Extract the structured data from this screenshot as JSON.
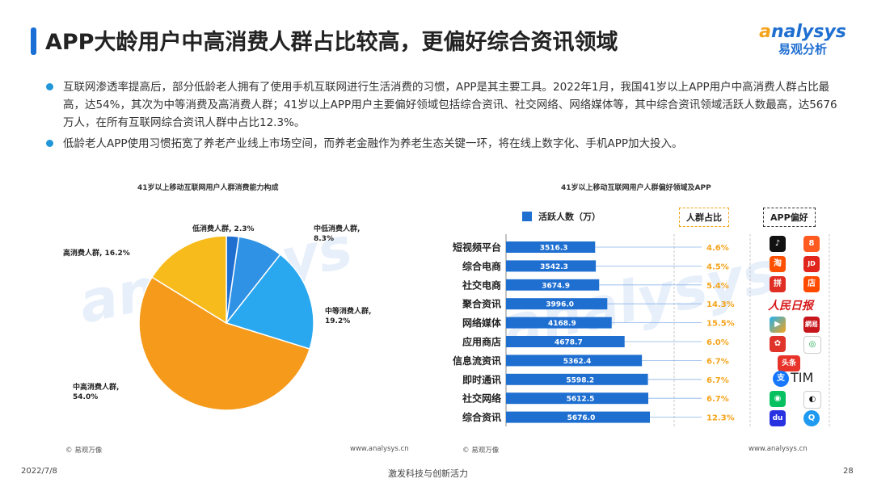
{
  "header": {
    "title": "APP大龄用户中高消费人群占比较高，更偏好综合资讯领域",
    "logo_word_a": "a",
    "logo_word_rest": "nalysys",
    "logo_cn": "易观分析"
  },
  "bullets": [
    "互联网渗透率提高后，部分低龄老人拥有了使用手机互联网进行生活消费的习惯，APP是其主要工具。2022年1月，我国41岁以上APP用户中高消费人群占比最高，达54%，其次为中等消费及高消费人群；41岁以上APP用户主要偏好领域包括综合资讯、社交网络、网络媒体等，其中综合资讯领域活跃人数最高，达5676万人，在所有互联网综合资讯人群中占比12.3%。",
    "低龄老人APP使用习惯拓宽了养老产业线上市场空间，而养老金融作为养老生态关键一环，将在线上数字化、手机APP加大投入。"
  ],
  "chart_data": [
    {
      "type": "pie",
      "title": "41岁以上移动互联网用户人群消费能力构成",
      "slices": [
        {
          "label": "低消费人群",
          "value": 2.3,
          "display": "低消费人群, 2.3%",
          "color": "#1f6fd1"
        },
        {
          "label": "中低消费人群",
          "value": 8.3,
          "display": "中低消费人群,\n8.3%",
          "color": "#2f92e4"
        },
        {
          "label": "中等消费人群",
          "value": 19.2,
          "display": "中等消费人群,\n19.2%",
          "color": "#29a8f0"
        },
        {
          "label": "中高消费人群",
          "value": 54.0,
          "display": "中高消费人群,\n54.0%",
          "color": "#f59a1b"
        },
        {
          "label": "高消费人群",
          "value": 16.2,
          "display": "高消费人群, 16.2%",
          "color": "#f8bb1c"
        }
      ]
    },
    {
      "type": "bar",
      "title": "41岁以上移动互联网用户人群偏好领域及APP",
      "legend": [
        "活跃人数（万）",
        "人群占比",
        "APP偏好"
      ],
      "categories": [
        "短视频平台",
        "综合电商",
        "社交电商",
        "聚合资讯",
        "网络媒体",
        "应用商店",
        "信息流资讯",
        "即时通讯",
        "社交网络",
        "综合资讯"
      ],
      "values": [
        3516.3,
        3542.3,
        3674.9,
        3996.0,
        4168.9,
        4678.7,
        5362.4,
        5598.2,
        5612.5,
        5676.0
      ],
      "value_labels": [
        "3516.3",
        "3542.3",
        "3674.9",
        "3996.0",
        "4168.9",
        "4678.7",
        "5362.4",
        "5598.2",
        "5612.5",
        "5676.0"
      ],
      "share": [
        "4.6%",
        "4.5%",
        "5.4%",
        "14.3%",
        "15.5%",
        "6.0%",
        "6.7%",
        "6.7%",
        "6.7%",
        "12.3%"
      ],
      "apps": [
        [
          "抖音",
          "快手"
        ],
        [
          "淘宝",
          "京东"
        ],
        [
          "拼多多",
          "点淘"
        ],
        [
          "人民日报",
          ""
        ],
        [
          "腾讯视频",
          "网易"
        ],
        [
          "华为应用市场",
          "360手机助手"
        ],
        [
          "今日头条",
          ""
        ],
        [
          "支付宝",
          "TIM"
        ],
        [
          "微信",
          "QQ"
        ],
        [
          "百度",
          "QQ浏览器"
        ]
      ]
    }
  ],
  "sources": {
    "left_copyright": "© 易观万像",
    "left_url": "www.analysys.cn",
    "right_copyright": "© 易观万像",
    "right_url": "www.analysys.cn"
  },
  "footer": {
    "date": "2022/7/8",
    "slogan": "激发科技与创新活力",
    "page": "28"
  },
  "app_badges": {
    "kuaishou": "8",
    "taobao": "淘",
    "jd": "JD",
    "pdd": "拼",
    "diantao": "店",
    "people": "人民日报",
    "tencent_video": "▶",
    "netease": "網易",
    "huawei": "✿",
    "app360": "◎",
    "toutiao": "头条",
    "alipay": "支",
    "tim": "TIM",
    "wechat": "◉",
    "qq": "◐",
    "baidu": "du",
    "qqbrowser": "Q"
  },
  "colors": {
    "accent_blue": "#1f6fd1",
    "accent_orange": "#f5a31a"
  }
}
